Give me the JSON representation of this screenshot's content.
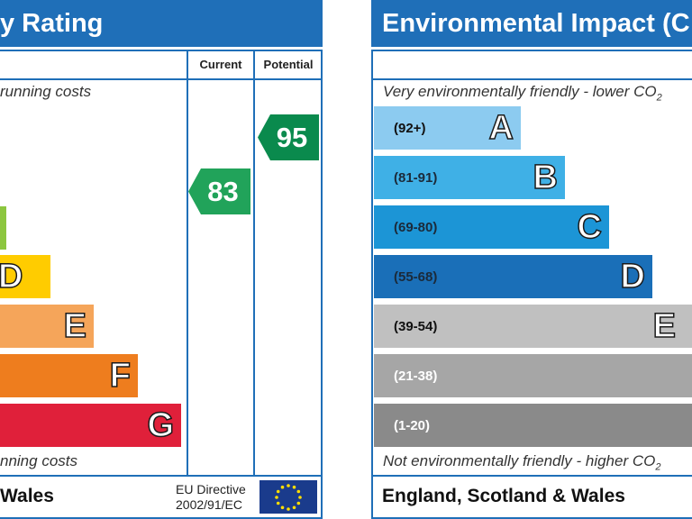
{
  "energy": {
    "title": "y Rating",
    "col_current": "Current",
    "col_potential": "Potential",
    "top_note": "running costs",
    "bottom_note": "nning costs",
    "bands": [
      {
        "letter": "",
        "color": "#8cc63f"
      },
      {
        "letter": "D",
        "color": "#ffcc00"
      },
      {
        "letter": "E",
        "color": "#f5a55a"
      },
      {
        "letter": "F",
        "color": "#ee7d1e"
      },
      {
        "letter": "G",
        "color": "#e0203a"
      }
    ],
    "current_value": "83",
    "current_color": "#21a35a",
    "potential_value": "95",
    "potential_color": "#0a8a4d",
    "footer": "Wales",
    "directive_line1": "EU Directive",
    "directive_line2": "2002/91/EC",
    "flag_icon": "eu-flag-icon"
  },
  "environment": {
    "title": "Environmental Impact (C",
    "top_note": "Very environmentally friendly - lower CO",
    "top_note_sub": "2",
    "bottom_note": "Not environmentally friendly - higher CO",
    "bottom_note_sub": "2",
    "bands": [
      {
        "range": "(92+)",
        "letter": "A",
        "color": "#8ccbf0",
        "text_color": "#111111"
      },
      {
        "range": "(81-91)",
        "letter": "B",
        "color": "#3fb0e6",
        "text_color": "#1b2a3a"
      },
      {
        "range": "(69-80)",
        "letter": "C",
        "color": "#1c95d6",
        "text_color": "#1b2a3a"
      },
      {
        "range": "(55-68)",
        "letter": "D",
        "color": "#1a6fb8",
        "text_color": "#1b2a3a"
      },
      {
        "range": "(39-54)",
        "letter": "E",
        "color": "#c0c0c0",
        "text_color": "#111111"
      },
      {
        "range": "(21-38)",
        "letter": "",
        "color": "#a6a6a6",
        "text_color": "#ffffff"
      },
      {
        "range": "(1-20)",
        "letter": "",
        "color": "#8a8a8a",
        "text_color": "#ffffff"
      }
    ],
    "footer": "England, Scotland & Wales"
  }
}
